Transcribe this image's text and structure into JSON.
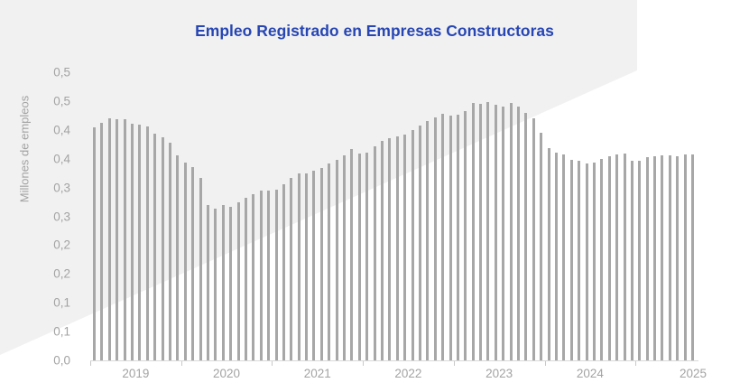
{
  "colors": {
    "title": "#2746b3",
    "bar": "#a7a7a7",
    "axis_line": "#d9d9d9",
    "axis_tick": "#c9c9c9",
    "tick_text": "#a3a3a3",
    "watermark": "#f1f1f2",
    "background": "#ffffff"
  },
  "chart_data": {
    "type": "bar",
    "title": "Empleo Registrado en Empresas Constructoras",
    "ylabel": "Millones de empleos",
    "xlabel": "",
    "unit": "millones de empleos",
    "frequency": "monthly",
    "start": "2019-01",
    "end": "2025-08",
    "ylim": [
      0,
      0.5
    ],
    "y_tick_step": 0.05,
    "y_tick_labels": [
      "0,0",
      "0,1",
      "0,1",
      "0,2",
      "0,2",
      "0,3",
      "0,3",
      "0,4",
      "0,4",
      "0,5",
      "0,5"
    ],
    "x_tick_labels": [
      "2019",
      "2020",
      "2021",
      "2022",
      "2023",
      "2024",
      "2025"
    ],
    "legend": null,
    "grid": false,
    "values_by_year": {
      "2019": [
        0.404,
        0.413,
        0.42,
        0.418,
        0.419,
        0.411,
        0.409,
        0.406,
        0.394,
        0.387,
        0.378,
        0.356
      ],
      "2020": [
        0.344,
        0.336,
        0.316,
        0.27,
        0.264,
        0.27,
        0.266,
        0.274,
        0.282,
        0.288,
        0.295,
        0.294
      ],
      "2021": [
        0.297,
        0.306,
        0.317,
        0.325,
        0.325,
        0.329,
        0.334,
        0.342,
        0.348,
        0.356,
        0.366,
        0.359
      ],
      "2022": [
        0.36,
        0.372,
        0.381,
        0.385,
        0.388,
        0.392,
        0.4,
        0.408,
        0.415,
        0.421,
        0.428,
        0.424
      ],
      "2023": [
        0.426,
        0.432,
        0.447,
        0.445,
        0.449,
        0.444,
        0.44,
        0.446,
        0.441,
        0.429,
        0.42,
        0.395
      ],
      "2024": [
        0.368,
        0.36,
        0.358,
        0.348,
        0.347,
        0.342,
        0.343,
        0.35,
        0.355,
        0.358,
        0.359,
        0.347
      ],
      "2025": [
        0.347,
        0.352,
        0.355,
        0.356,
        0.356,
        0.354,
        0.358,
        0.357
      ]
    }
  }
}
